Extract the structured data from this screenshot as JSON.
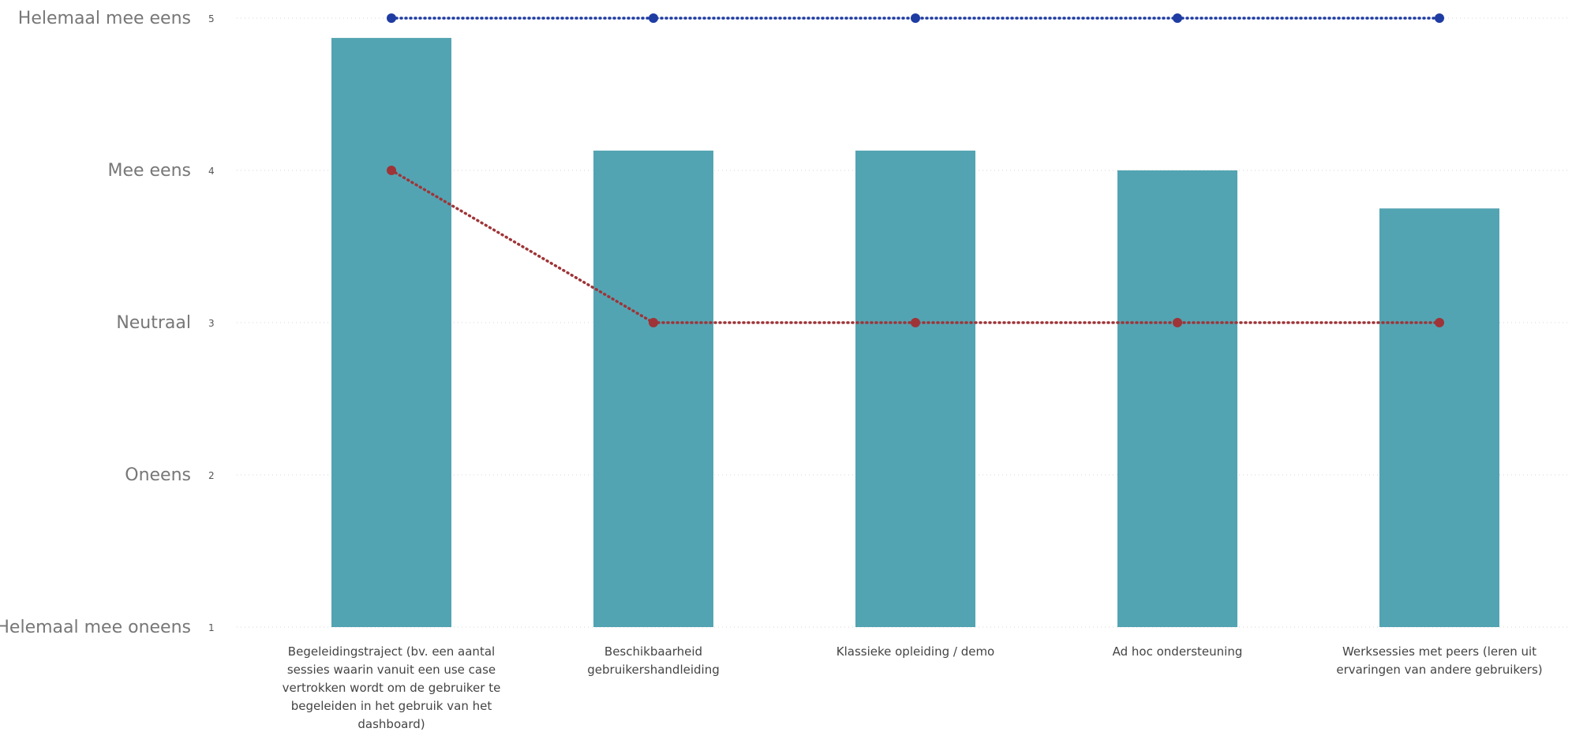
{
  "chart_data": {
    "type": "bar",
    "categories": [
      "Begeleidingstraject (bv. een aantal sessies waarin vanuit een use case vertrokken wordt om de gebruiker te begeleiden in het gebruik van het dashboard)",
      "Beschikbaarheid gebruikershandleiding",
      "Klassieke opleiding / demo",
      "Ad hoc ondersteuning",
      "Werksessies met peers (leren uit ervaringen van andere gebruikers)"
    ],
    "category_lines": [
      [
        "Begeleidingstraject (bv. een aantal",
        "sessies waarin vanuit een use case",
        "vertrokken wordt om de gebruiker te",
        "begeleiden in het gebruik van het",
        "dashboard)"
      ],
      [
        "Beschikbaarheid",
        "gebruikershandleiding"
      ],
      [
        "Klassieke opleiding / demo"
      ],
      [
        "Ad hoc ondersteuning"
      ],
      [
        "Werksessies met peers (leren uit",
        "ervaringen van andere gebruikers)"
      ]
    ],
    "series": [
      {
        "kind": "bar",
        "values": [
          4.87,
          4.13,
          4.13,
          4.0,
          3.75
        ],
        "color": "#53a4b2"
      },
      {
        "kind": "line",
        "values": [
          5,
          5,
          5,
          5,
          5
        ],
        "color": "#1f3ca3"
      },
      {
        "kind": "line",
        "values": [
          4,
          3,
          3,
          3,
          3
        ],
        "color": "#9e3438"
      }
    ],
    "ylim": [
      1,
      5
    ],
    "y_ticks": [
      {
        "value": 5,
        "tick": "5",
        "label": "Helemaal mee eens"
      },
      {
        "value": 4,
        "tick": "4",
        "label": "Mee eens"
      },
      {
        "value": 3,
        "tick": "3",
        "label": "Neutraal"
      },
      {
        "value": 2,
        "tick": "2",
        "label": "Oneens"
      },
      {
        "value": 1,
        "tick": "1",
        "label": "Helemaal mee oneens"
      }
    ],
    "grid": true
  }
}
